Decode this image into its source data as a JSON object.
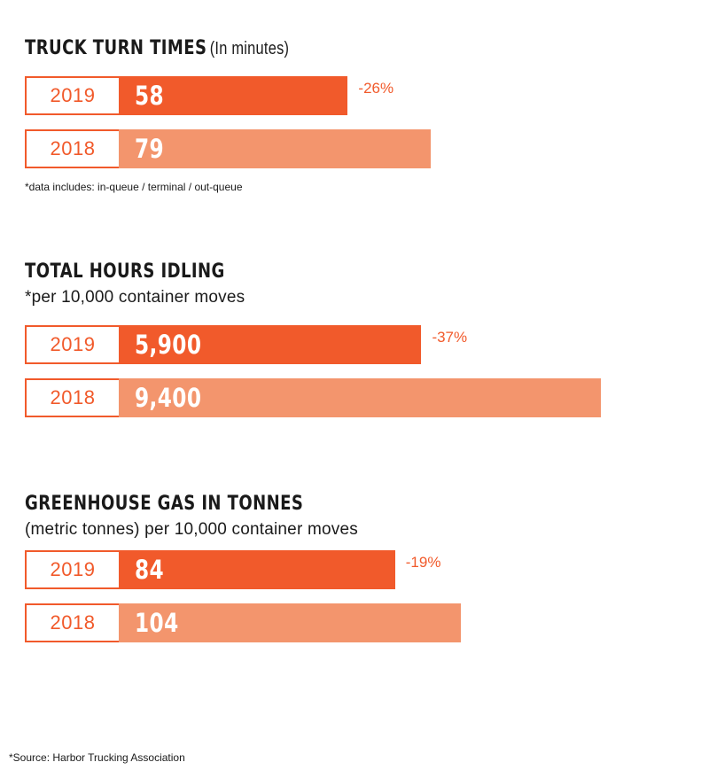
{
  "colors": {
    "y2019": "#f15a2b",
    "y2018": "#f3956d",
    "accent": "#f15a2b"
  },
  "chart_data": [
    {
      "type": "bar",
      "title": "TRUCK TURN TIMES",
      "subtitle": "(In minutes)",
      "categories": [
        "2019",
        "2018"
      ],
      "values": [
        58,
        79
      ],
      "value_labels": [
        "58",
        "79"
      ],
      "change_label": "-26%",
      "footnote": "*data includes: in-queue / terminal / out-queue"
    },
    {
      "type": "bar",
      "title": "TOTAL HOURS IDLING",
      "subtitle": "*per 10,000 container moves",
      "categories": [
        "2019",
        "2018"
      ],
      "values": [
        5900,
        9400
      ],
      "value_labels": [
        "5,900",
        "9,400"
      ],
      "change_label": "-37%"
    },
    {
      "type": "bar",
      "title": "GREENHOUSE GAS IN TONNES",
      "subtitle": "(metric tonnes) per 10,000 container moves",
      "categories": [
        "2019",
        "2018"
      ],
      "values": [
        84,
        104
      ],
      "value_labels": [
        "84",
        "104"
      ],
      "change_label": "-19%"
    }
  ],
  "source": "*Source: Harbor Trucking Association"
}
